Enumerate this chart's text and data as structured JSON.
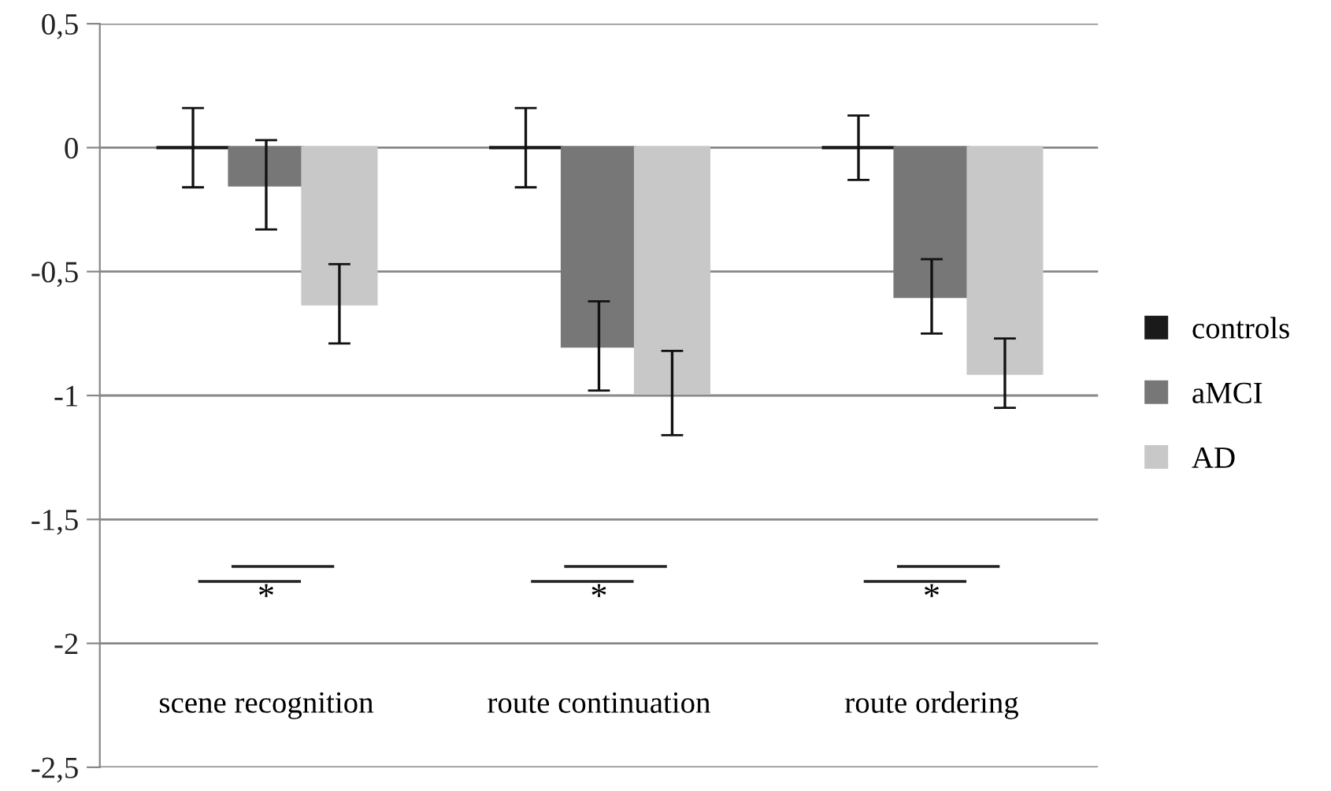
{
  "chart_data": {
    "type": "bar",
    "categories": [
      "scene recognition",
      "route continuation",
      "route ordering"
    ],
    "series": [
      {
        "name": "controls",
        "color": "#1a1a1a",
        "values": [
          0,
          0,
          0
        ],
        "errors": [
          0.16,
          0.16,
          0.13
        ]
      },
      {
        "name": "aMCI",
        "color": "#777777",
        "values": [
          -0.15,
          -0.8,
          -0.6
        ],
        "errors": [
          0.18,
          0.18,
          0.15
        ]
      },
      {
        "name": "AD",
        "color": "#c8c8c8",
        "values": [
          -0.63,
          -0.99,
          -0.91
        ],
        "errors": [
          0.16,
          0.17,
          0.14
        ]
      }
    ],
    "ylim": [
      -2.5,
      0.5
    ],
    "yticks": [
      {
        "value": 0.5,
        "label": "0,5"
      },
      0,
      {
        "value": -0.5,
        "label": "-0,5"
      },
      -1,
      {
        "value": -1.5,
        "label": "-1,5"
      },
      -2,
      {
        "value": -2.5,
        "label": "-2,5"
      }
    ],
    "grid": "y",
    "legend": "right",
    "annotations": [
      "*",
      "*",
      "*"
    ]
  }
}
